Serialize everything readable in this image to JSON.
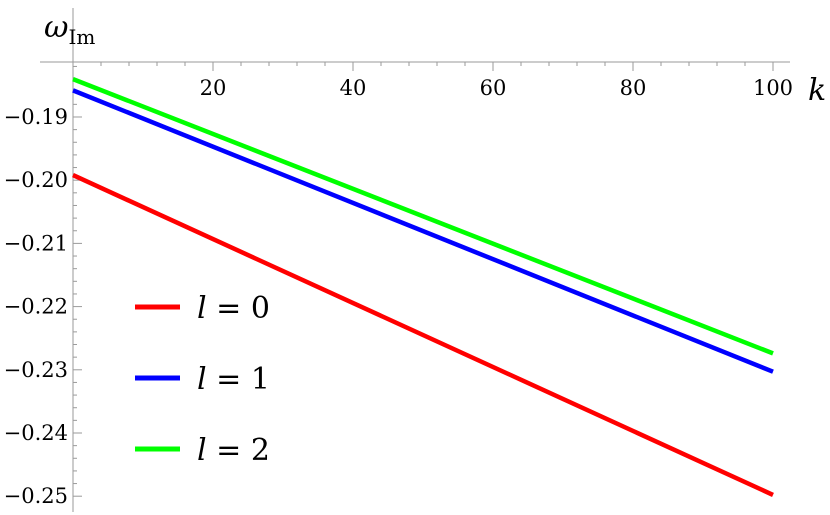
{
  "chart_data": {
    "type": "line",
    "title": "",
    "xlabel": "k",
    "ylabel": {
      "main": "ω",
      "sub": "Im"
    },
    "xlim": [
      0,
      100
    ],
    "ylim": [
      -0.2525,
      -0.1813
    ],
    "x_ticks_major": [
      20,
      40,
      60,
      80,
      100
    ],
    "x_tick_labels": [
      "20",
      "40",
      "60",
      "80",
      "100"
    ],
    "y_ticks_major": [
      -0.19,
      -0.2,
      -0.21,
      -0.22,
      -0.23,
      -0.24,
      -0.25
    ],
    "y_tick_labels": [
      "-0.19",
      "-0.20",
      "-0.21",
      "-0.22",
      "-0.23",
      "-0.24",
      "-0.25"
    ],
    "grid": false,
    "legend_position": "bottom-left",
    "series": [
      {
        "name": "l = 0",
        "label_var": "l",
        "label_rest": " = 0",
        "color": "#ff0000",
        "x": [
          0,
          100
        ],
        "y": [
          -0.1992,
          -0.2498
        ]
      },
      {
        "name": "l = 1",
        "label_var": "l",
        "label_rest": " = 1",
        "color": "#0000ff",
        "x": [
          0,
          100
        ],
        "y": [
          -0.1858,
          -0.2303
        ]
      },
      {
        "name": "l = 2",
        "label_var": "l",
        "label_rest": " = 2",
        "color": "#00ff00",
        "x": [
          0,
          100
        ],
        "y": [
          -0.184,
          -0.2274
        ]
      }
    ]
  }
}
